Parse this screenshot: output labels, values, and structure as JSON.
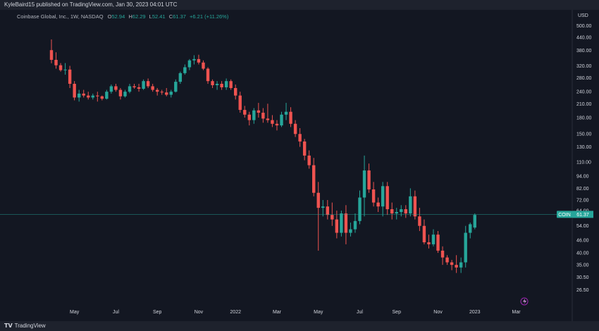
{
  "header": {
    "publisher_text": "KyleBaird15 published on TradingView.com, Jan 30, 2023 04:01 UTC"
  },
  "legend": {
    "symbol": "Coinbase Global, Inc., 1W, NASDAQ",
    "o_label": "O",
    "o_value": "52.94",
    "h_label": "H",
    "h_value": "62.29",
    "l_label": "L",
    "l_value": "52.41",
    "c_label": "C",
    "c_value": "61.37",
    "change": "+6.21 (+11.26%)"
  },
  "footer": {
    "brand": "TradingView"
  },
  "colors": {
    "background": "#131722",
    "up": "#26a69a",
    "down": "#ef5350",
    "text": "#d1d4dc",
    "price_line": "#26a69a"
  },
  "chart_data": {
    "type": "candlestick",
    "y_scale": "log",
    "currency": "USD",
    "ylim": [
      23.5,
      560
    ],
    "y_ticks": [
      "500.00",
      "440.00",
      "380.00",
      "320.00",
      "280.00",
      "240.00",
      "210.00",
      "180.00",
      "150.00",
      "130.00",
      "110.00",
      "94.00",
      "82.00",
      "72.00",
      "64.00",
      "54.00",
      "46.00",
      "40.00",
      "35.00",
      "30.50",
      "26.50"
    ],
    "x_tick_labels": [
      "May",
      "Jul",
      "Sep",
      "Nov",
      "2022",
      "Mar",
      "May",
      "Jul",
      "Sep",
      "Nov",
      "2023",
      "Mar"
    ],
    "x_tick_indices": [
      5,
      14,
      23,
      32,
      40,
      49,
      58,
      67,
      75,
      84,
      92,
      101
    ],
    "last_price": {
      "symbol": "COIN",
      "value": "61.37"
    },
    "candles": [
      [
        381,
        429,
        329,
        342
      ],
      [
        342,
        372,
        310,
        322
      ],
      [
        322,
        330,
        300,
        305
      ],
      [
        305,
        330,
        290,
        307
      ],
      [
        307,
        320,
        250,
        262
      ],
      [
        262,
        270,
        218,
        225
      ],
      [
        225,
        245,
        215,
        235
      ],
      [
        235,
        245,
        225,
        230
      ],
      [
        230,
        240,
        220,
        225
      ],
      [
        225,
        235,
        220,
        230
      ],
      [
        230,
        240,
        215,
        228
      ],
      [
        228,
        230,
        218,
        222
      ],
      [
        222,
        245,
        220,
        240
      ],
      [
        240,
        260,
        235,
        255
      ],
      [
        255,
        262,
        240,
        245
      ],
      [
        245,
        250,
        220,
        228
      ],
      [
        228,
        245,
        225,
        240
      ],
      [
        240,
        262,
        236,
        255
      ],
      [
        255,
        262,
        248,
        252
      ],
      [
        252,
        262,
        240,
        248
      ],
      [
        248,
        275,
        245,
        270
      ],
      [
        270,
        278,
        250,
        255
      ],
      [
        255,
        262,
        240,
        245
      ],
      [
        245,
        250,
        230,
        240
      ],
      [
        240,
        245,
        232,
        238
      ],
      [
        238,
        250,
        228,
        232
      ],
      [
        232,
        245,
        225,
        240
      ],
      [
        240,
        275,
        238,
        268
      ],
      [
        268,
        300,
        262,
        295
      ],
      [
        295,
        325,
        290,
        315
      ],
      [
        315,
        345,
        305,
        340
      ],
      [
        340,
        360,
        325,
        345
      ],
      [
        345,
        362,
        325,
        332
      ],
      [
        332,
        340,
        305,
        310
      ],
      [
        310,
        315,
        262,
        270
      ],
      [
        270,
        275,
        250,
        258
      ],
      [
        258,
        270,
        245,
        262
      ],
      [
        262,
        270,
        245,
        252
      ],
      [
        252,
        278,
        245,
        270
      ],
      [
        270,
        275,
        245,
        250
      ],
      [
        250,
        260,
        220,
        230
      ],
      [
        230,
        240,
        190,
        196
      ],
      [
        196,
        205,
        180,
        186
      ],
      [
        186,
        192,
        165,
        175
      ],
      [
        175,
        200,
        168,
        195
      ],
      [
        195,
        212,
        180,
        190
      ],
      [
        190,
        200,
        170,
        178
      ],
      [
        178,
        210,
        170,
        175
      ],
      [
        175,
        185,
        162,
        168
      ],
      [
        168,
        175,
        156,
        165
      ],
      [
        165,
        192,
        162,
        186
      ],
      [
        186,
        212,
        175,
        192
      ],
      [
        192,
        202,
        162,
        168
      ],
      [
        168,
        175,
        145,
        150
      ],
      [
        150,
        160,
        130,
        138
      ],
      [
        138,
        142,
        112,
        118
      ],
      [
        118,
        125,
        102,
        106
      ],
      [
        106,
        115,
        75,
        78
      ],
      [
        78,
        88,
        41,
        66
      ],
      [
        66,
        72,
        60,
        67
      ],
      [
        67,
        72,
        58,
        61
      ],
      [
        61,
        70,
        54,
        58
      ],
      [
        58,
        64,
        47,
        50
      ],
      [
        50,
        64,
        48,
        62
      ],
      [
        62,
        68,
        44,
        50
      ],
      [
        50,
        56,
        48,
        52
      ],
      [
        52,
        62,
        50,
        57
      ],
      [
        57,
        80,
        55,
        74
      ],
      [
        74,
        118,
        60,
        100
      ],
      [
        100,
        108,
        78,
        81
      ],
      [
        81,
        88,
        67,
        70
      ],
      [
        70,
        74,
        63,
        67
      ],
      [
        67,
        88,
        60,
        84
      ],
      [
        84,
        88,
        61,
        65
      ],
      [
        65,
        70,
        58,
        62
      ],
      [
        62,
        66,
        58,
        63
      ],
      [
        63,
        68,
        60,
        65
      ],
      [
        65,
        68,
        59,
        62
      ],
      [
        62,
        82,
        60,
        75
      ],
      [
        75,
        80,
        58,
        60
      ],
      [
        60,
        66,
        51,
        54
      ],
      [
        54,
        58,
        44,
        45
      ],
      [
        45,
        49,
        42,
        44
      ],
      [
        44,
        52,
        43,
        49
      ],
      [
        49,
        51,
        40,
        41
      ],
      [
        41,
        43,
        35,
        38
      ],
      [
        38,
        39,
        35,
        36
      ],
      [
        36,
        37,
        33,
        35
      ],
      [
        35,
        39,
        32,
        34
      ],
      [
        34,
        38,
        32,
        36
      ],
      [
        36,
        54,
        34,
        50
      ],
      [
        50,
        56,
        47,
        55
      ],
      [
        53,
        62,
        52,
        61
      ]
    ]
  }
}
